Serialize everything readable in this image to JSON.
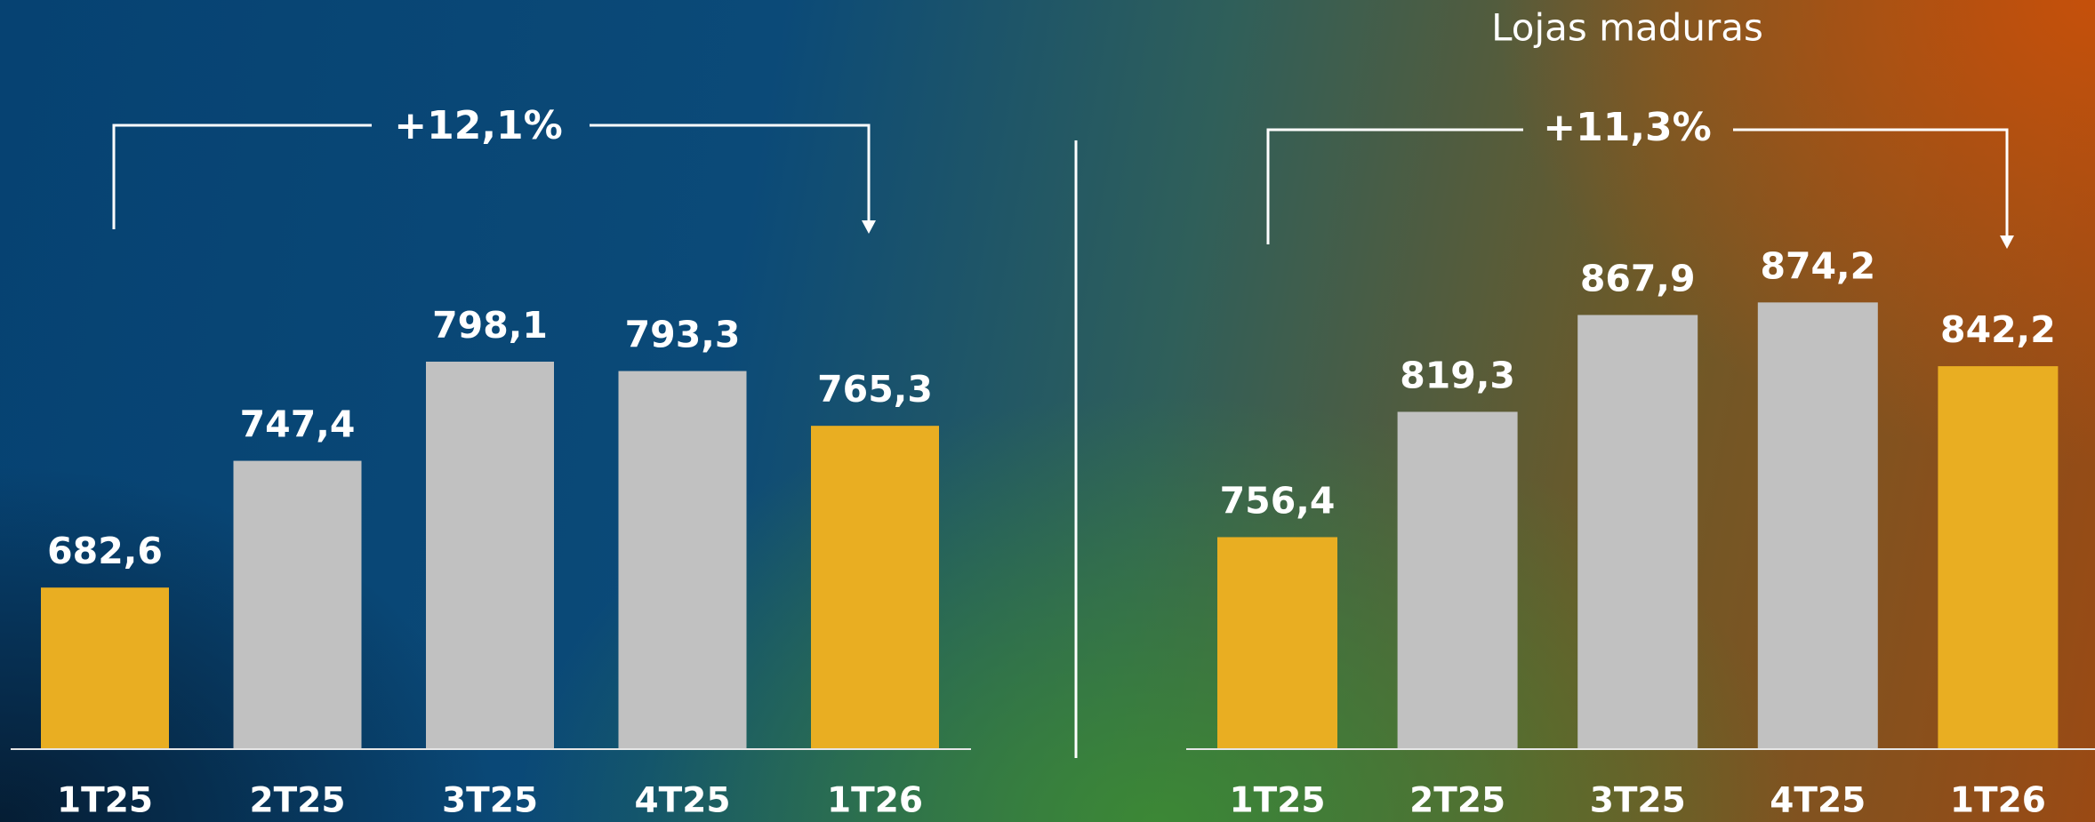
{
  "chart_data": [
    {
      "type": "bar",
      "annotation": "+12,1%",
      "categories": [
        "1T25",
        "2T25",
        "3T25",
        "4T25",
        "1T26"
      ],
      "values": [
        682.6,
        747.4,
        798.1,
        793.3,
        765.3
      ],
      "value_labels": [
        "682,6",
        "747,4",
        "798,1",
        "793,3",
        "765,3"
      ],
      "colors": [
        "#e9ae22",
        "#c1c1c1",
        "#c1c1c1",
        "#c1c1c1",
        "#e9ae22"
      ],
      "ylim": [
        600,
        983
      ]
    },
    {
      "type": "bar",
      "title": "Lojas maduras",
      "annotation": "+11,3%",
      "categories": [
        "1T25",
        "2T25",
        "3T25",
        "4T25",
        "1T26"
      ],
      "values": [
        756.4,
        819.3,
        867.9,
        874.2,
        842.2
      ],
      "value_labels": [
        "756,4",
        "819,3",
        "867,9",
        "874,2",
        "842,2"
      ],
      "colors": [
        "#e9ae22",
        "#c1c1c1",
        "#c1c1c1",
        "#c1c1c1",
        "#e9ae22"
      ],
      "ylim": [
        650,
        1026
      ]
    }
  ]
}
